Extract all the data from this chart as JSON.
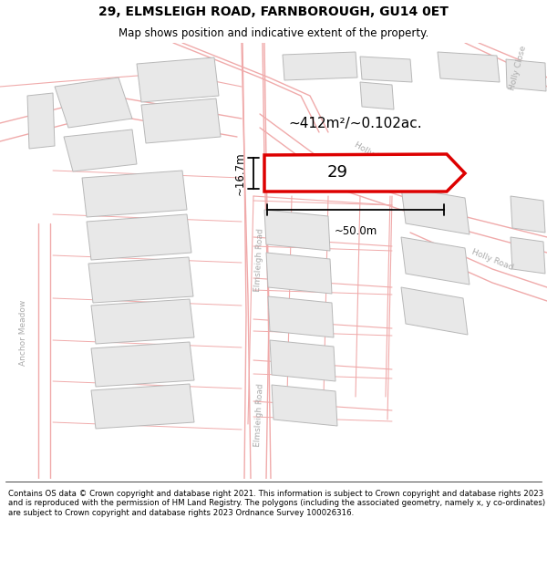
{
  "title": "29, ELMSLEIGH ROAD, FARNBOROUGH, GU14 0ET",
  "subtitle": "Map shows position and indicative extent of the property.",
  "area_label": "~412m²/~0.102ac.",
  "number_label": "29",
  "width_label": "~50.0m",
  "height_label": "~16.7m",
  "footer": "Contains OS data © Crown copyright and database right 2021. This information is subject to Crown copyright and database rights 2023 and is reproduced with the permission of HM Land Registry. The polygons (including the associated geometry, namely x, y co-ordinates) are subject to Crown copyright and database rights 2023 Ordnance Survey 100026316.",
  "map_bg": "#ffffff",
  "road_outline_color": "#f0aaaa",
  "road_fill_color": "#fdf5f5",
  "building_fill": "#e8e8e8",
  "building_edge": "#b8b8b8",
  "plot_outline_color": "#e8a0a0",
  "highlight_color": "#dd0000",
  "highlight_linewidth": 2.5,
  "title_fontsize": 10,
  "subtitle_fontsize": 8.5,
  "footer_fontsize": 6.2,
  "label_color": "#aaaaaa",
  "road_label_fontsize": 6.5
}
